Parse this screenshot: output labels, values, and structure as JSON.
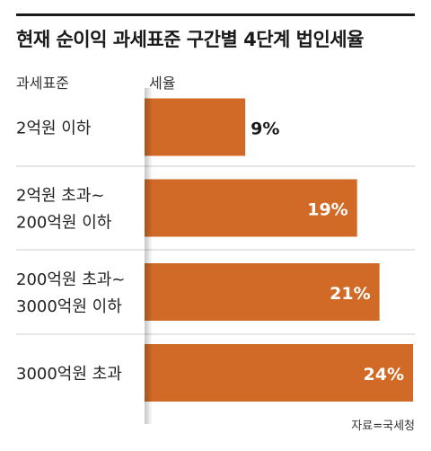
{
  "title": "현재 순이익 과세표준 구간별 4단계 법인세율",
  "header": {
    "left": "과세표준",
    "right": "세율"
  },
  "source": "자료=국세청",
  "colors": {
    "bar": "#d06a26",
    "label_dark": "#1a1a1a",
    "label_light": "#ffffff",
    "divider": "#cccccc"
  },
  "chart_data": {
    "type": "bar",
    "orientation": "horizontal",
    "title": "현재 순이익 과세표준 구간별 4단계 법인세율",
    "categories": [
      [
        "2억원 이하"
      ],
      [
        "2억원 초과~",
        "200억원 이하"
      ],
      [
        "200억원 초과~",
        "3000억원 이하"
      ],
      [
        "3000억원 초과"
      ]
    ],
    "values": [
      9,
      19,
      21,
      24
    ],
    "labels": [
      "9%",
      "19%",
      "21%",
      "24%"
    ],
    "xlim": [
      0,
      24
    ],
    "grid": false
  }
}
